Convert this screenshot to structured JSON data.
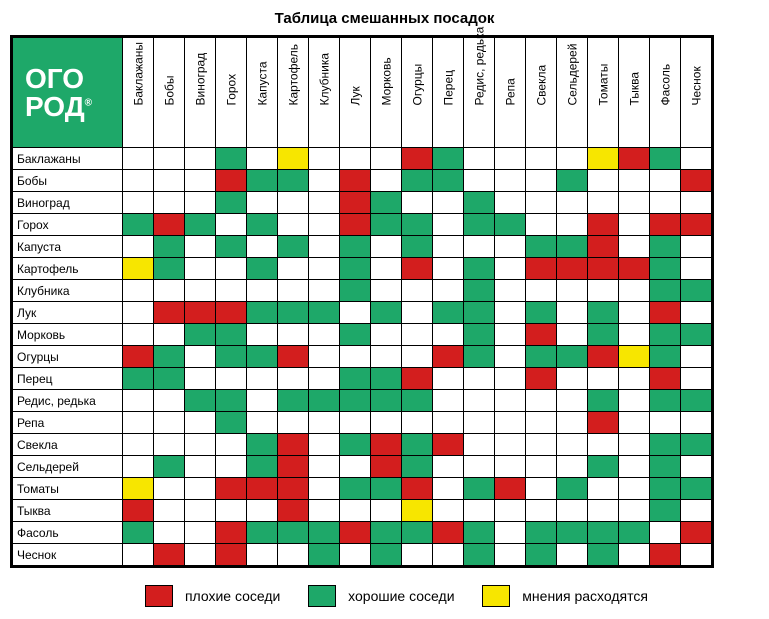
{
  "title": "Таблица смешанных посадок",
  "logo_line1": "ОГО",
  "logo_line2": "РОД",
  "colors": {
    "good": "#1ea869",
    "bad": "#d31e1e",
    "mixed": "#f7e600",
    "bg": "#ffffff",
    "border": "#000000"
  },
  "plants": [
    "Баклажаны",
    "Бобы",
    "Виноград",
    "Горох",
    "Капуста",
    "Картофель",
    "Клубника",
    "Лук",
    "Морковь",
    "Огурцы",
    "Перец",
    "Редис, редька",
    "Репа",
    "Свекла",
    "Сельдерей",
    "Томаты",
    "Тыква",
    "Фасоль",
    "Чеснок"
  ],
  "grid": [
    [
      "",
      "",
      "",
      "g",
      "",
      "y",
      "",
      "",
      "",
      "r",
      "g",
      "",
      "",
      "",
      "",
      "y",
      "r",
      "g",
      ""
    ],
    [
      "",
      "",
      "",
      "r",
      "g",
      "g",
      "",
      "r",
      "",
      "g",
      "g",
      "",
      "",
      "",
      "g",
      "",
      "",
      "",
      "r"
    ],
    [
      "",
      "",
      "",
      "g",
      "",
      "",
      "",
      "r",
      "g",
      "",
      "",
      "g",
      "",
      "",
      "",
      "",
      "",
      "",
      ""
    ],
    [
      "g",
      "r",
      "g",
      "",
      "g",
      "",
      "",
      "r",
      "g",
      "g",
      "",
      "g",
      "g",
      "",
      "",
      "r",
      "",
      "r",
      "r"
    ],
    [
      "",
      "g",
      "",
      "g",
      "",
      "g",
      "",
      "g",
      "",
      "g",
      "",
      "",
      "",
      "g",
      "g",
      "r",
      "",
      "g",
      ""
    ],
    [
      "y",
      "g",
      "",
      "",
      "g",
      "",
      "",
      "g",
      "",
      "r",
      "",
      "g",
      "",
      "r",
      "r",
      "r",
      "r",
      "g",
      ""
    ],
    [
      "",
      "",
      "",
      "",
      "",
      "",
      "",
      "g",
      "",
      "",
      "",
      "g",
      "",
      "",
      "",
      "",
      "",
      "g",
      "g"
    ],
    [
      "",
      "r",
      "r",
      "r",
      "g",
      "g",
      "g",
      "",
      "g",
      "",
      "g",
      "g",
      "",
      "g",
      "",
      "g",
      "",
      "r",
      ""
    ],
    [
      "",
      "",
      "g",
      "g",
      "",
      "",
      "",
      "g",
      "",
      "",
      "",
      "g",
      "",
      "r",
      "",
      "g",
      "",
      "g",
      "g"
    ],
    [
      "r",
      "g",
      "",
      "g",
      "g",
      "r",
      "",
      "",
      "",
      "",
      "r",
      "g",
      "",
      "g",
      "g",
      "r",
      "y",
      "g",
      ""
    ],
    [
      "g",
      "g",
      "",
      "",
      "",
      "",
      "",
      "g",
      "g",
      "r",
      "",
      "",
      "",
      "r",
      "",
      "",
      "",
      "r",
      ""
    ],
    [
      "",
      "",
      "g",
      "g",
      "",
      "g",
      "g",
      "g",
      "g",
      "g",
      "",
      "",
      "",
      "",
      "",
      "g",
      "",
      "g",
      "g"
    ],
    [
      "",
      "",
      "",
      "g",
      "",
      "",
      "",
      "",
      "",
      "",
      "",
      "",
      "",
      "",
      "",
      "r",
      "",
      "",
      ""
    ],
    [
      "",
      "",
      "",
      "",
      "g",
      "r",
      "",
      "g",
      "r",
      "g",
      "r",
      "",
      "",
      "",
      "",
      "",
      "",
      "g",
      "g"
    ],
    [
      "",
      "g",
      "",
      "",
      "g",
      "r",
      "",
      "",
      "r",
      "g",
      "",
      "",
      "",
      "",
      "",
      "g",
      "",
      "g",
      ""
    ],
    [
      "y",
      "",
      "",
      "r",
      "r",
      "r",
      "",
      "g",
      "g",
      "r",
      "",
      "g",
      "r",
      "",
      "g",
      "",
      "",
      "g",
      "g"
    ],
    [
      "r",
      "",
      "",
      "",
      "",
      "r",
      "",
      "",
      "",
      "y",
      "",
      "",
      "",
      "",
      "",
      "",
      "",
      "g",
      ""
    ],
    [
      "g",
      "",
      "",
      "r",
      "g",
      "g",
      "g",
      "r",
      "g",
      "g",
      "r",
      "g",
      "",
      "g",
      "g",
      "g",
      "g",
      "",
      "r"
    ],
    [
      "",
      "r",
      "",
      "r",
      "",
      "",
      "g",
      "",
      "g",
      "",
      "",
      "g",
      "",
      "g",
      "",
      "g",
      "",
      "r",
      ""
    ]
  ],
  "legend": {
    "bad": "плохие соседи",
    "good": "хорошие соседи",
    "mixed": "мнения расходятся"
  }
}
